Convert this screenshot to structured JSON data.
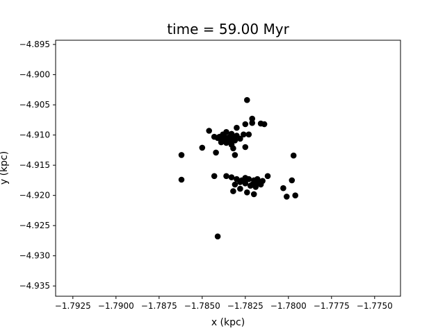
{
  "chart_data": {
    "type": "scatter",
    "title": "time = 59.00 Myr",
    "xlabel": "x (kpc)",
    "ylabel": "y (kpc)",
    "xlim": [
      -1.7935,
      -1.7735
    ],
    "ylim": [
      -4.9367,
      -4.8943
    ],
    "xticks": [
      -1.7925,
      -1.79,
      -1.7875,
      -1.785,
      -1.7825,
      -1.78,
      -1.7775,
      -1.775
    ],
    "xtick_labels": [
      "−1.7925",
      "−1.7900",
      "−1.7875",
      "−1.7850",
      "−1.7825",
      "−1.7800",
      "−1.7775",
      "−1.7750"
    ],
    "yticks": [
      -4.895,
      -4.9,
      -4.905,
      -4.91,
      -4.915,
      -4.92,
      -4.925,
      -4.93,
      -4.935
    ],
    "ytick_labels": [
      "−4.895",
      "−4.900",
      "−4.905",
      "−4.910",
      "−4.915",
      "−4.920",
      "−4.925",
      "−4.930",
      "−4.935"
    ],
    "grid": false,
    "marker_color": "#000000",
    "points": [
      [
        -1.7824,
        -4.9042
      ],
      [
        -1.7821,
        -4.9073
      ],
      [
        -1.7821,
        -4.908
      ],
      [
        -1.7816,
        -4.9081
      ],
      [
        -1.7814,
        -4.9082
      ],
      [
        -1.7846,
        -4.9093
      ],
      [
        -1.7825,
        -4.9082
      ],
      [
        -1.783,
        -4.9088
      ],
      [
        -1.7836,
        -4.9095
      ],
      [
        -1.7838,
        -4.9099
      ],
      [
        -1.784,
        -4.9103
      ],
      [
        -1.7833,
        -4.9098
      ],
      [
        -1.7826,
        -4.9099
      ],
      [
        -1.7823,
        -4.9099
      ],
      [
        -1.783,
        -4.9101
      ],
      [
        -1.7832,
        -4.9104
      ],
      [
        -1.7834,
        -4.9103
      ],
      [
        -1.7836,
        -4.9105
      ],
      [
        -1.7841,
        -4.9105
      ],
      [
        -1.7843,
        -4.9103
      ],
      [
        -1.7839,
        -4.9108
      ],
      [
        -1.7836,
        -4.9109
      ],
      [
        -1.7834,
        -4.9108
      ],
      [
        -1.7837,
        -4.9103
      ],
      [
        -1.7831,
        -4.9109
      ],
      [
        -1.7828,
        -4.9106
      ],
      [
        -1.7833,
        -4.9111
      ],
      [
        -1.7839,
        -4.9112
      ],
      [
        -1.7836,
        -4.9113
      ],
      [
        -1.7833,
        -4.9116
      ],
      [
        -1.7832,
        -4.9122
      ],
      [
        -1.7825,
        -4.912
      ],
      [
        -1.785,
        -4.9121
      ],
      [
        -1.7862,
        -4.9133
      ],
      [
        -1.7842,
        -4.9129
      ],
      [
        -1.7831,
        -4.9133
      ],
      [
        -1.7797,
        -4.9134
      ],
      [
        -1.7862,
        -4.9174
      ],
      [
        -1.7843,
        -4.9168
      ],
      [
        -1.7836,
        -4.9168
      ],
      [
        -1.7833,
        -4.917
      ],
      [
        -1.783,
        -4.9173
      ],
      [
        -1.7827,
        -4.9175
      ],
      [
        -1.7825,
        -4.9171
      ],
      [
        -1.7823,
        -4.9173
      ],
      [
        -1.782,
        -4.9175
      ],
      [
        -1.7818,
        -4.9173
      ],
      [
        -1.7815,
        -4.9176
      ],
      [
        -1.7812,
        -4.9168
      ],
      [
        -1.7831,
        -4.9182
      ],
      [
        -1.7828,
        -4.9178
      ],
      [
        -1.7825,
        -4.918
      ],
      [
        -1.7821,
        -4.9182
      ],
      [
        -1.7818,
        -4.9179
      ],
      [
        -1.7816,
        -4.9182
      ],
      [
        -1.7819,
        -4.9186
      ],
      [
        -1.7822,
        -4.9184
      ],
      [
        -1.7828,
        -4.9189
      ],
      [
        -1.7832,
        -4.9193
      ],
      [
        -1.7824,
        -4.9195
      ],
      [
        -1.782,
        -4.9198
      ],
      [
        -1.7803,
        -4.9188
      ],
      [
        -1.7798,
        -4.9175
      ],
      [
        -1.7801,
        -4.9202
      ],
      [
        -1.7796,
        -4.92
      ],
      [
        -1.7841,
        -4.9268
      ]
    ]
  }
}
